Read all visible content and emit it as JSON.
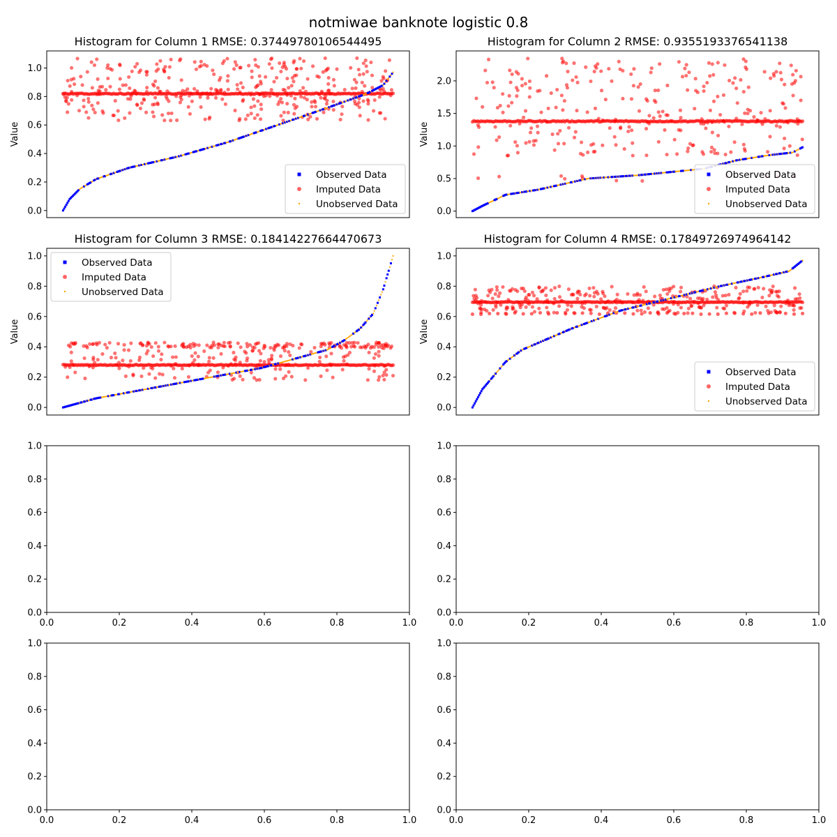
{
  "figure": {
    "suptitle": "notmiwae banknote logistic 0.8"
  },
  "colors": {
    "observed": "#0000ff",
    "imputed": "#ff0000",
    "unobserved": "#ffa500",
    "axes": "#000000",
    "background": "#ffffff"
  },
  "legend_labels": [
    "Observed Data",
    "Imputed Data",
    "Unobserved Data"
  ],
  "chart_data": [
    {
      "type": "scatter",
      "title": "Histogram for Column 1 RMSE: 0.37449780106544495",
      "ylabel": "Value",
      "xlim": [
        0.0,
        1.0
      ],
      "ylim": [
        -0.05,
        1.12
      ],
      "yticks": [
        "0.0",
        "0.2",
        "0.4",
        "0.6",
        "0.8",
        "1.0"
      ],
      "ytick_values": [
        0.0,
        0.2,
        0.4,
        0.6,
        0.8,
        1.0
      ],
      "show_xticks": false,
      "legend_position": "lower right",
      "x_range": [
        0.045,
        0.955
      ],
      "curve": [
        [
          0.0,
          0.0
        ],
        [
          0.02,
          0.08
        ],
        [
          0.05,
          0.15
        ],
        [
          0.1,
          0.22
        ],
        [
          0.2,
          0.3
        ],
        [
          0.35,
          0.38
        ],
        [
          0.5,
          0.48
        ],
        [
          0.65,
          0.6
        ],
        [
          0.8,
          0.72
        ],
        [
          0.92,
          0.82
        ],
        [
          0.97,
          0.88
        ],
        [
          1.0,
          0.97
        ]
      ],
      "imputed_bands": [
        {
          "y": 0.82,
          "spread": 0.004,
          "count": 230
        }
      ],
      "imputed_scatter": [
        {
          "ymin": 0.63,
          "ymax": 1.07,
          "count": 320
        },
        {
          "ymin": 0.74,
          "ymax": 0.9,
          "count": 60
        }
      ],
      "legend_names": [
        "Observed Data",
        "Imputed Data",
        "Unobserved Data"
      ]
    },
    {
      "type": "scatter",
      "title": "Histogram for Column 2 RMSE: 0.9355193376541138",
      "ylabel": "Value",
      "xlim": [
        0.0,
        1.0
      ],
      "ylim": [
        -0.1,
        2.46
      ],
      "yticks": [
        "0.0",
        "0.5",
        "1.0",
        "1.5",
        "2.0"
      ],
      "ytick_values": [
        0.0,
        0.5,
        1.0,
        1.5,
        2.0
      ],
      "show_xticks": false,
      "legend_position": "lower right",
      "x_range": [
        0.045,
        0.955
      ],
      "curve": [
        [
          0.0,
          0.0
        ],
        [
          0.03,
          0.08
        ],
        [
          0.1,
          0.25
        ],
        [
          0.2,
          0.33
        ],
        [
          0.35,
          0.5
        ],
        [
          0.5,
          0.55
        ],
        [
          0.6,
          0.6
        ],
        [
          0.7,
          0.65
        ],
        [
          0.8,
          0.78
        ],
        [
          0.9,
          0.86
        ],
        [
          0.97,
          0.9
        ],
        [
          1.0,
          0.98
        ]
      ],
      "imputed_bands": [
        {
          "y": 1.38,
          "spread": 0.01,
          "count": 230
        }
      ],
      "imputed_scatter": [
        {
          "ymin": 0.85,
          "ymax": 2.35,
          "count": 280
        },
        {
          "ymin": 0.46,
          "ymax": 0.55,
          "count": 12
        }
      ],
      "legend_names": [
        "Observed Data",
        "Imputed Data",
        "Unobserved Data"
      ]
    },
    {
      "type": "scatter",
      "title": "Histogram for Column 3 RMSE: 0.18414227664470673",
      "ylabel": "Value",
      "xlim": [
        0.0,
        1.0
      ],
      "ylim": [
        -0.05,
        1.05
      ],
      "yticks": [
        "0.0",
        "0.2",
        "0.4",
        "0.6",
        "0.8",
        "1.0"
      ],
      "ytick_values": [
        0.0,
        0.2,
        0.4,
        0.6,
        0.8,
        1.0
      ],
      "show_xticks": false,
      "legend_position": "upper left",
      "x_range": [
        0.045,
        0.955
      ],
      "curve": [
        [
          0.0,
          0.0
        ],
        [
          0.1,
          0.06
        ],
        [
          0.25,
          0.12
        ],
        [
          0.4,
          0.18
        ],
        [
          0.5,
          0.22
        ],
        [
          0.6,
          0.26
        ],
        [
          0.7,
          0.32
        ],
        [
          0.8,
          0.38
        ],
        [
          0.85,
          0.44
        ],
        [
          0.9,
          0.52
        ],
        [
          0.94,
          0.62
        ],
        [
          0.97,
          0.78
        ],
        [
          1.0,
          1.0
        ]
      ],
      "imputed_bands": [
        {
          "y": 0.28,
          "spread": 0.003,
          "count": 230
        }
      ],
      "imputed_scatter": [
        {
          "ymin": 0.39,
          "ymax": 0.43,
          "count": 150
        },
        {
          "ymin": 0.18,
          "ymax": 0.38,
          "count": 160
        }
      ],
      "legend_names": [
        "Observed Data",
        "Imputed Data",
        "Unobserved Data"
      ]
    },
    {
      "type": "scatter",
      "title": "Histogram for Column 4 RMSE: 0.17849726974964142",
      "ylabel": "Value",
      "xlim": [
        0.0,
        1.0
      ],
      "ylim": [
        -0.05,
        1.05
      ],
      "yticks": [
        "0.0",
        "0.2",
        "0.4",
        "0.6",
        "0.8",
        "1.0"
      ],
      "ytick_values": [
        0.0,
        0.2,
        0.4,
        0.6,
        0.8,
        1.0
      ],
      "show_xticks": false,
      "legend_position": "lower right",
      "x_range": [
        0.045,
        0.955
      ],
      "curve": [
        [
          0.0,
          0.0
        ],
        [
          0.03,
          0.12
        ],
        [
          0.1,
          0.3
        ],
        [
          0.15,
          0.38
        ],
        [
          0.3,
          0.52
        ],
        [
          0.45,
          0.64
        ],
        [
          0.6,
          0.72
        ],
        [
          0.75,
          0.8
        ],
        [
          0.88,
          0.86
        ],
        [
          0.96,
          0.9
        ],
        [
          1.0,
          0.97
        ]
      ],
      "imputed_bands": [
        {
          "y": 0.695,
          "spread": 0.003,
          "count": 230
        },
        {
          "y": 0.62,
          "spread": 0.005,
          "count": 40
        }
      ],
      "imputed_scatter": [
        {
          "ymin": 0.62,
          "ymax": 0.8,
          "count": 280
        }
      ],
      "legend_names": [
        "Observed Data",
        "Imputed Data",
        "Unobserved Data"
      ]
    },
    {
      "type": "scatter",
      "title": "",
      "empty": true,
      "xlim": [
        0.0,
        1.0
      ],
      "ylim": [
        0.0,
        1.0
      ],
      "xticks": [
        "0.0",
        "0.2",
        "0.4",
        "0.6",
        "0.8",
        "1.0"
      ],
      "yticks": [
        "0.0",
        "0.2",
        "0.4",
        "0.6",
        "0.8",
        "1.0"
      ],
      "tick_values": [
        0.0,
        0.2,
        0.4,
        0.6,
        0.8,
        1.0
      ]
    },
    {
      "type": "scatter",
      "title": "",
      "empty": true,
      "xlim": [
        0.0,
        1.0
      ],
      "ylim": [
        0.0,
        1.0
      ],
      "xticks": [
        "0.0",
        "0.2",
        "0.4",
        "0.6",
        "0.8",
        "1.0"
      ],
      "yticks": [
        "0.0",
        "0.2",
        "0.4",
        "0.6",
        "0.8",
        "1.0"
      ],
      "tick_values": [
        0.0,
        0.2,
        0.4,
        0.6,
        0.8,
        1.0
      ]
    },
    {
      "type": "scatter",
      "title": "",
      "empty": true,
      "xlim": [
        0.0,
        1.0
      ],
      "ylim": [
        0.0,
        1.0
      ],
      "xticks": [
        "0.0",
        "0.2",
        "0.4",
        "0.6",
        "0.8",
        "1.0"
      ],
      "yticks": [
        "0.0",
        "0.2",
        "0.4",
        "0.6",
        "0.8",
        "1.0"
      ],
      "tick_values": [
        0.0,
        0.2,
        0.4,
        0.6,
        0.8,
        1.0
      ]
    },
    {
      "type": "scatter",
      "title": "",
      "empty": true,
      "xlim": [
        0.0,
        1.0
      ],
      "ylim": [
        0.0,
        1.0
      ],
      "xticks": [
        "0.0",
        "0.2",
        "0.4",
        "0.6",
        "0.8",
        "1.0"
      ],
      "yticks": [
        "0.0",
        "0.2",
        "0.4",
        "0.6",
        "0.8",
        "1.0"
      ],
      "tick_values": [
        0.0,
        0.2,
        0.4,
        0.6,
        0.8,
        1.0
      ]
    }
  ]
}
